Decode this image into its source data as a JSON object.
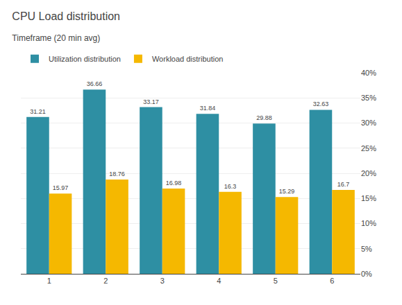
{
  "chart_data": {
    "type": "bar",
    "title": "CPU Load distribution",
    "subtitle": "Timeframe (20 min avg)",
    "categories": [
      1,
      2,
      3,
      4,
      5,
      6
    ],
    "series": [
      {
        "name": "Utilization distribution",
        "color": "#2e8fa3",
        "values": [
          31.21,
          36.66,
          33.17,
          31.84,
          29.88,
          32.63
        ]
      },
      {
        "name": "Workload distribution",
        "color": "#f5b800",
        "values": [
          15.97,
          18.76,
          16.98,
          16.3,
          15.29,
          16.7
        ]
      }
    ],
    "ylim": [
      0,
      40
    ],
    "yticks": [
      {
        "value": 0,
        "label": "0%"
      },
      {
        "value": 5,
        "label": "5%"
      },
      {
        "value": 10,
        "label": "10%"
      },
      {
        "value": 15,
        "label": "15%"
      },
      {
        "value": 20,
        "label": "20%"
      },
      {
        "value": 25,
        "label": "25%"
      },
      {
        "value": 30,
        "label": "30%"
      },
      {
        "value": 35,
        "label": "35%"
      },
      {
        "value": 40,
        "label": "40%"
      }
    ],
    "grid": true,
    "legend": "upper left",
    "data_labels": true
  }
}
